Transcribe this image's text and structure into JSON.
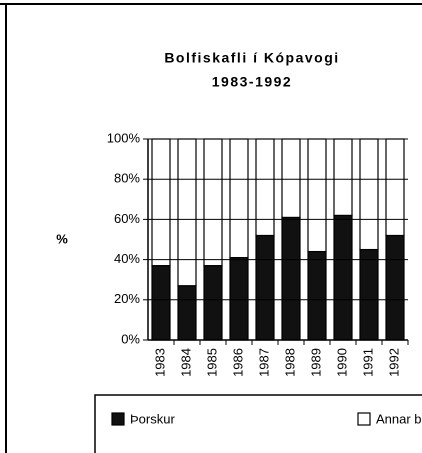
{
  "chart_data": {
    "type": "stacked_bar",
    "title": "Bolfiskafli í Kópavogi",
    "subtitle": "1983-1992",
    "ylabel": "%",
    "categories": [
      "1983",
      "1984",
      "1985",
      "1986",
      "1987",
      "1988",
      "1989",
      "1990",
      "1991",
      "1992"
    ],
    "series": [
      {
        "name": "Þorskur",
        "color": "#111111",
        "values": [
          37,
          27,
          37,
          41,
          52,
          61,
          44,
          62,
          45,
          52
        ]
      },
      {
        "name": "Annar bolfiskafli",
        "color": "#ffffff",
        "values": [
          63,
          73,
          63,
          59,
          48,
          39,
          56,
          38,
          55,
          48
        ]
      }
    ],
    "ylim": [
      0,
      100
    ],
    "yticks": [
      {
        "value": 0,
        "label": "0%"
      },
      {
        "value": 20,
        "label": "20%"
      },
      {
        "value": 40,
        "label": "40%"
      },
      {
        "value": 60,
        "label": "60%"
      },
      {
        "value": 80,
        "label": "80%"
      },
      {
        "value": 100,
        "label": "100%"
      }
    ],
    "grid": true,
    "legend": "bottom"
  }
}
